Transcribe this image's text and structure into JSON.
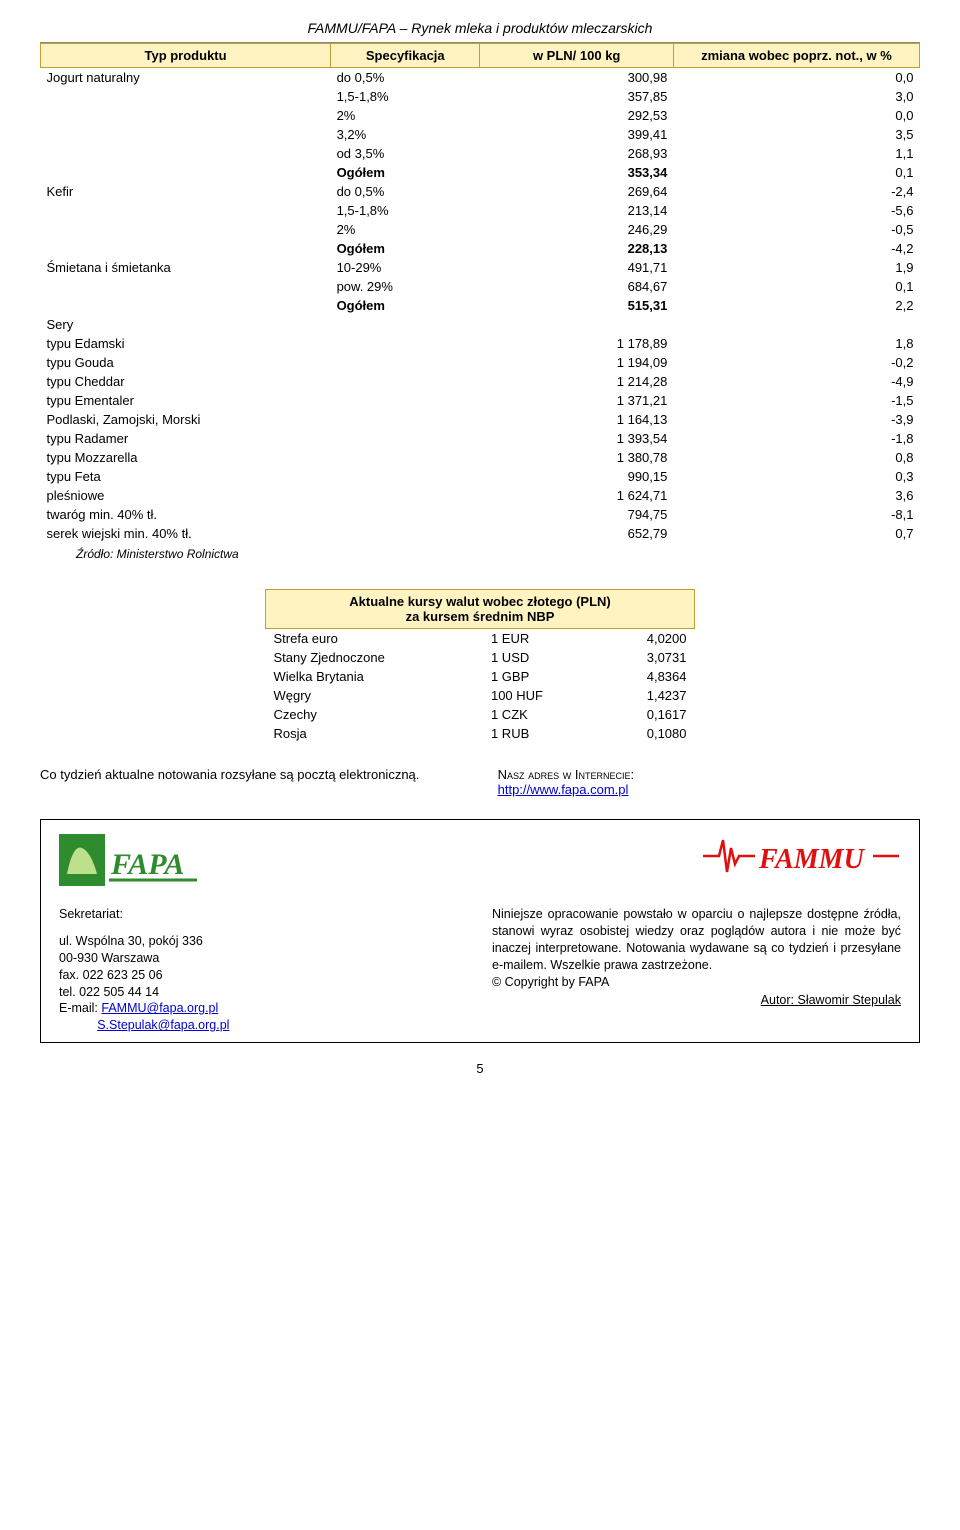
{
  "header": {
    "title": "FAMMU/FAPA – Rynek mleka i produktów mleczarskich"
  },
  "main_table": {
    "columns": [
      "Typ produktu",
      "Specyfikacja",
      "w PLN/ 100 kg",
      "zmiana wobec poprz. not., w %"
    ],
    "rows": [
      {
        "label": "Jogurt naturalny",
        "spec": "do 0,5%",
        "val": "300,98",
        "chg": "0,0",
        "label_bold": false,
        "spec_bold": false,
        "val_bold": false,
        "chg_bold": false
      },
      {
        "label": "",
        "spec": "1,5-1,8%",
        "val": "357,85",
        "chg": "3,0"
      },
      {
        "label": "",
        "spec": "2%",
        "val": "292,53",
        "chg": "0,0"
      },
      {
        "label": "",
        "spec": "3,2%",
        "val": "399,41",
        "chg": "3,5"
      },
      {
        "label": "",
        "spec": "od 3,5%",
        "val": "268,93",
        "chg": "1,1"
      },
      {
        "label": "",
        "spec": "Ogółem",
        "val": "353,34",
        "chg": "0,1",
        "spec_bold": true,
        "val_bold": true
      },
      {
        "label": "Kefir",
        "spec": "do 0,5%",
        "val": "269,64",
        "chg": "-2,4"
      },
      {
        "label": "",
        "spec": "1,5-1,8%",
        "val": "213,14",
        "chg": "-5,6"
      },
      {
        "label": "",
        "spec": "2%",
        "val": "246,29",
        "chg": "-0,5"
      },
      {
        "label": "",
        "spec": "Ogółem",
        "val": "228,13",
        "chg": "-4,2",
        "spec_bold": true,
        "val_bold": true
      },
      {
        "label": "Śmietana i śmietanka",
        "spec": "10-29%",
        "val": "491,71",
        "chg": "1,9"
      },
      {
        "label": "",
        "spec": "pow. 29%",
        "val": "684,67",
        "chg": "0,1"
      },
      {
        "label": "",
        "spec": "Ogółem",
        "val": "515,31",
        "chg": "2,2",
        "spec_bold": true,
        "val_bold": true
      },
      {
        "label": "Sery",
        "spec": "",
        "val": "",
        "chg": ""
      },
      {
        "label": "typu Edamski",
        "spec": "",
        "val": "1 178,89",
        "chg": "1,8"
      },
      {
        "label": "typu Gouda",
        "spec": "",
        "val": "1 194,09",
        "chg": "-0,2"
      },
      {
        "label": "typu Cheddar",
        "spec": "",
        "val": "1 214,28",
        "chg": "-4,9"
      },
      {
        "label": "typu Ementaler",
        "spec": "",
        "val": "1 371,21",
        "chg": "-1,5"
      },
      {
        "label": "Podlaski, Zamojski, Morski",
        "spec": "",
        "val": "1 164,13",
        "chg": "-3,9"
      },
      {
        "label": "typu Radamer",
        "spec": "",
        "val": "1 393,54",
        "chg": "-1,8"
      },
      {
        "label": "typu Mozzarella",
        "spec": "",
        "val": "1 380,78",
        "chg": "0,8"
      },
      {
        "label": "typu Feta",
        "spec": "",
        "val": "990,15",
        "chg": "0,3"
      },
      {
        "label": "pleśniowe",
        "spec": "",
        "val": "1 624,71",
        "chg": "3,6"
      },
      {
        "label": "twaróg min. 40% tł.",
        "spec": "",
        "val": "794,75",
        "chg": "-8,1"
      },
      {
        "label": "serek wiejski min. 40% tł.",
        "spec": "",
        "val": "652,79",
        "chg": "0,7"
      }
    ],
    "source": "Źródło: Ministerstwo Rolnictwa",
    "header_bg": "#fff3c2",
    "header_border": "#c0a030"
  },
  "fx_table": {
    "title_line1": "Aktualne kursy walut wobec złotego (PLN)",
    "title_line2": "za kursem średnim NBP",
    "rows": [
      {
        "name": "Strefa euro",
        "unit": "1 EUR",
        "val": "4,0200"
      },
      {
        "name": "Stany Zjednoczone",
        "unit": "1 USD",
        "val": "3,0731"
      },
      {
        "name": "Wielka Brytania",
        "unit": "1 GBP",
        "val": "4,8364"
      },
      {
        "name": "Węgry",
        "unit": "100 HUF",
        "val": "1,4237"
      },
      {
        "name": "Czechy",
        "unit": "1 CZK",
        "val": "0,1617"
      },
      {
        "name": "Rosja",
        "unit": "1 RUB",
        "val": "0,1080"
      }
    ]
  },
  "midtext": {
    "left": "Co tydzień aktualne notowania rozsyłane są pocztą elektroniczną.",
    "right_label": "Nasz adres w Internecie:",
    "right_url_text": "http://www.fapa.com.pl"
  },
  "box": {
    "left": {
      "heading": "Sekretariat:",
      "line1": "ul. Wspólna 30, pokój 336",
      "line2": "00-930 Warszawa",
      "line3": "fax.   022 623 25 06",
      "line4": "tel.   022 505 44 14",
      "line5_prefix": "E-mail: ",
      "email1": "FAMMU@fapa.org.pl",
      "email2_prefix": "           ",
      "email2": "S.Stepulak@fapa.org.pl"
    },
    "right": {
      "para": "Niniejsze opracowanie powstało w oparciu o najlepsze dostępne źródła, stanowi wyraz osobistej wiedzy oraz poglądów autora i nie może być inaczej interpretowane. Notowania wydawane są co tydzień i przesyłane e-mailem. Wszelkie prawa zastrzeżone.",
      "copyright": "© Copyright by FAPA",
      "author_label": "Autor: Sławomir Stepulak"
    }
  },
  "page_number": "5",
  "logos": {
    "fapa_green": "#2e8b2e",
    "fapa_text": "FAPA",
    "fammu_red": "#e01010",
    "fammu_text": "FAMMU"
  }
}
